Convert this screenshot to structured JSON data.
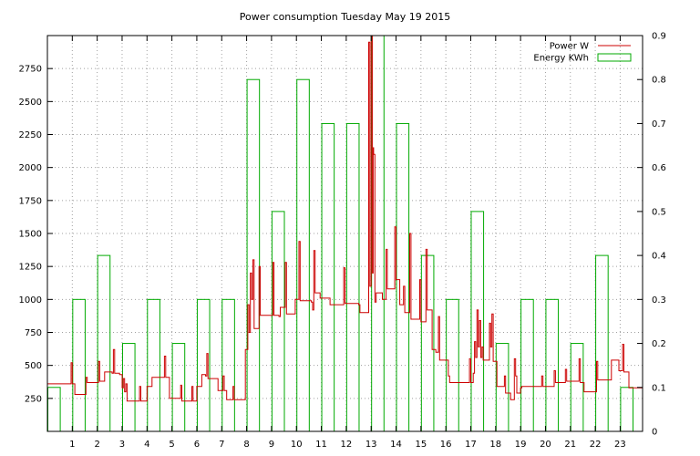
{
  "chart_data": {
    "type": "line",
    "title": "Power consumption Tuesday May 19 2015",
    "grid": true,
    "legend_position": "top-right",
    "x_ticks": [
      1,
      2,
      3,
      4,
      5,
      6,
      7,
      8,
      9,
      10,
      11,
      12,
      13,
      14,
      15,
      16,
      17,
      18,
      19,
      20,
      21,
      22,
      23
    ],
    "xlim": [
      0,
      23.9
    ],
    "y_left": {
      "ticks": [
        250,
        500,
        750,
        1000,
        1250,
        1500,
        1750,
        2000,
        2250,
        2500,
        2750
      ],
      "lim": [
        0,
        3000
      ]
    },
    "y_right": {
      "ticks": [
        0,
        0.1,
        0.2,
        0.3,
        0.4,
        0.5,
        0.6,
        0.7,
        0.8,
        0.9
      ],
      "lim": [
        0,
        0.9
      ]
    },
    "series": [
      {
        "name": "Power W",
        "color": "#cc0000",
        "axis": "left",
        "points": [
          [
            0,
            360
          ],
          [
            0.9,
            360
          ],
          [
            0.95,
            520
          ],
          [
            1.0,
            360
          ],
          [
            1.1,
            280
          ],
          [
            1.5,
            280
          ],
          [
            1.55,
            410
          ],
          [
            1.6,
            370
          ],
          [
            2.0,
            370
          ],
          [
            2.05,
            530
          ],
          [
            2.1,
            380
          ],
          [
            2.3,
            450
          ],
          [
            2.6,
            440
          ],
          [
            2.65,
            620
          ],
          [
            2.7,
            440
          ],
          [
            2.9,
            430
          ],
          [
            3.0,
            330
          ],
          [
            3.05,
            400
          ],
          [
            3.1,
            300
          ],
          [
            3.15,
            360
          ],
          [
            3.2,
            230
          ],
          [
            3.6,
            230
          ],
          [
            3.7,
            340
          ],
          [
            3.75,
            230
          ],
          [
            3.9,
            230
          ],
          [
            4.0,
            340
          ],
          [
            4.2,
            410
          ],
          [
            4.6,
            410
          ],
          [
            4.7,
            570
          ],
          [
            4.75,
            410
          ],
          [
            4.9,
            250
          ],
          [
            5.3,
            250
          ],
          [
            5.35,
            350
          ],
          [
            5.4,
            230
          ],
          [
            5.75,
            230
          ],
          [
            5.8,
            340
          ],
          [
            5.85,
            230
          ],
          [
            5.95,
            230
          ],
          [
            6.0,
            340
          ],
          [
            6.2,
            430
          ],
          [
            6.35,
            420
          ],
          [
            6.4,
            590
          ],
          [
            6.45,
            400
          ],
          [
            6.8,
            400
          ],
          [
            6.85,
            310
          ],
          [
            7.0,
            310
          ],
          [
            7.05,
            420
          ],
          [
            7.1,
            310
          ],
          [
            7.2,
            240
          ],
          [
            7.4,
            240
          ],
          [
            7.45,
            340
          ],
          [
            7.5,
            240
          ],
          [
            7.9,
            240
          ],
          [
            7.95,
            620
          ],
          [
            8.0,
            620
          ],
          [
            8.05,
            960
          ],
          [
            8.1,
            750
          ],
          [
            8.15,
            1200
          ],
          [
            8.2,
            1000
          ],
          [
            8.25,
            1300
          ],
          [
            8.3,
            780
          ],
          [
            8.45,
            780
          ],
          [
            8.5,
            1250
          ],
          [
            8.55,
            880
          ],
          [
            9.0,
            880
          ],
          [
            9.05,
            1280
          ],
          [
            9.1,
            880
          ],
          [
            9.3,
            870
          ],
          [
            9.35,
            940
          ],
          [
            9.5,
            940
          ],
          [
            9.55,
            1280
          ],
          [
            9.6,
            890
          ],
          [
            9.9,
            890
          ],
          [
            9.95,
            1000
          ],
          [
            10.05,
            1000
          ],
          [
            10.1,
            1440
          ],
          [
            10.15,
            990
          ],
          [
            10.6,
            980
          ],
          [
            10.65,
            920
          ],
          [
            10.7,
            1370
          ],
          [
            10.75,
            1050
          ],
          [
            10.9,
            1050
          ],
          [
            10.95,
            1010
          ],
          [
            11.3,
            1010
          ],
          [
            11.35,
            960
          ],
          [
            11.8,
            960
          ],
          [
            11.9,
            1240
          ],
          [
            11.95,
            970
          ],
          [
            12.3,
            970
          ],
          [
            12.5,
            960
          ],
          [
            12.55,
            900
          ],
          [
            12.85,
            900
          ],
          [
            12.9,
            2950
          ],
          [
            12.95,
            1100
          ],
          [
            13.0,
            3000
          ],
          [
            13.05,
            1200
          ],
          [
            13.08,
            2150
          ],
          [
            13.1,
            2100
          ],
          [
            13.15,
            980
          ],
          [
            13.2,
            1050
          ],
          [
            13.4,
            1050
          ],
          [
            13.45,
            1000
          ],
          [
            13.55,
            1000
          ],
          [
            13.6,
            1380
          ],
          [
            13.65,
            1080
          ],
          [
            13.9,
            1080
          ],
          [
            13.95,
            1550
          ],
          [
            14.0,
            1150
          ],
          [
            14.1,
            1150
          ],
          [
            14.15,
            960
          ],
          [
            14.25,
            960
          ],
          [
            14.3,
            1100
          ],
          [
            14.35,
            900
          ],
          [
            14.5,
            900
          ],
          [
            14.55,
            1500
          ],
          [
            14.6,
            850
          ],
          [
            14.9,
            850
          ],
          [
            14.95,
            1150
          ],
          [
            15.0,
            830
          ],
          [
            15.15,
            830
          ],
          [
            15.2,
            1380
          ],
          [
            15.25,
            920
          ],
          [
            15.4,
            920
          ],
          [
            15.45,
            620
          ],
          [
            15.5,
            620
          ],
          [
            15.6,
            600
          ],
          [
            15.7,
            870
          ],
          [
            15.75,
            540
          ],
          [
            16.05,
            540
          ],
          [
            16.1,
            420
          ],
          [
            16.15,
            370
          ],
          [
            16.9,
            370
          ],
          [
            16.95,
            550
          ],
          [
            17.0,
            370
          ],
          [
            17.1,
            440
          ],
          [
            17.15,
            680
          ],
          [
            17.2,
            560
          ],
          [
            17.25,
            920
          ],
          [
            17.3,
            640
          ],
          [
            17.35,
            840
          ],
          [
            17.4,
            560
          ],
          [
            17.45,
            640
          ],
          [
            17.5,
            540
          ],
          [
            17.7,
            540
          ],
          [
            17.75,
            820
          ],
          [
            17.8,
            640
          ],
          [
            17.85,
            890
          ],
          [
            17.9,
            530
          ],
          [
            18.0,
            530
          ],
          [
            18.05,
            340
          ],
          [
            18.3,
            340
          ],
          [
            18.35,
            420
          ],
          [
            18.4,
            290
          ],
          [
            18.55,
            290
          ],
          [
            18.6,
            240
          ],
          [
            18.7,
            240
          ],
          [
            18.75,
            550
          ],
          [
            18.8,
            420
          ],
          [
            18.85,
            290
          ],
          [
            18.95,
            290
          ],
          [
            19.0,
            330
          ],
          [
            19.05,
            340
          ],
          [
            19.8,
            340
          ],
          [
            19.85,
            420
          ],
          [
            19.9,
            340
          ],
          [
            20.3,
            340
          ],
          [
            20.35,
            460
          ],
          [
            20.4,
            370
          ],
          [
            20.75,
            370
          ],
          [
            20.8,
            470
          ],
          [
            20.85,
            380
          ],
          [
            21.3,
            380
          ],
          [
            21.35,
            550
          ],
          [
            21.4,
            370
          ],
          [
            21.5,
            370
          ],
          [
            21.55,
            300
          ],
          [
            22.0,
            300
          ],
          [
            22.05,
            530
          ],
          [
            22.1,
            390
          ],
          [
            22.6,
            390
          ],
          [
            22.65,
            540
          ],
          [
            22.9,
            540
          ],
          [
            22.95,
            460
          ],
          [
            23.05,
            460
          ],
          [
            23.1,
            660
          ],
          [
            23.15,
            450
          ],
          [
            23.3,
            450
          ],
          [
            23.35,
            330
          ],
          [
            23.9,
            330
          ]
        ]
      },
      {
        "name": "Energy KWh",
        "color": "#00aa00",
        "axis": "right",
        "bars": [
          [
            0,
            0.1
          ],
          [
            1,
            0.3
          ],
          [
            2,
            0.4
          ],
          [
            3,
            0.2
          ],
          [
            4,
            0.3
          ],
          [
            5,
            0.2
          ],
          [
            6,
            0.3
          ],
          [
            7,
            0.3
          ],
          [
            8,
            0.8
          ],
          [
            9,
            0.5
          ],
          [
            10,
            0.8
          ],
          [
            11,
            0.7
          ],
          [
            12,
            0.7
          ],
          [
            13,
            0.9
          ],
          [
            14,
            0.7
          ],
          [
            15,
            0.4
          ],
          [
            16,
            0.3
          ],
          [
            17,
            0.5
          ],
          [
            18,
            0.2
          ],
          [
            19,
            0.3
          ],
          [
            20,
            0.3
          ],
          [
            21,
            0.2
          ],
          [
            22,
            0.4
          ],
          [
            23,
            0.1
          ]
        ]
      }
    ]
  }
}
